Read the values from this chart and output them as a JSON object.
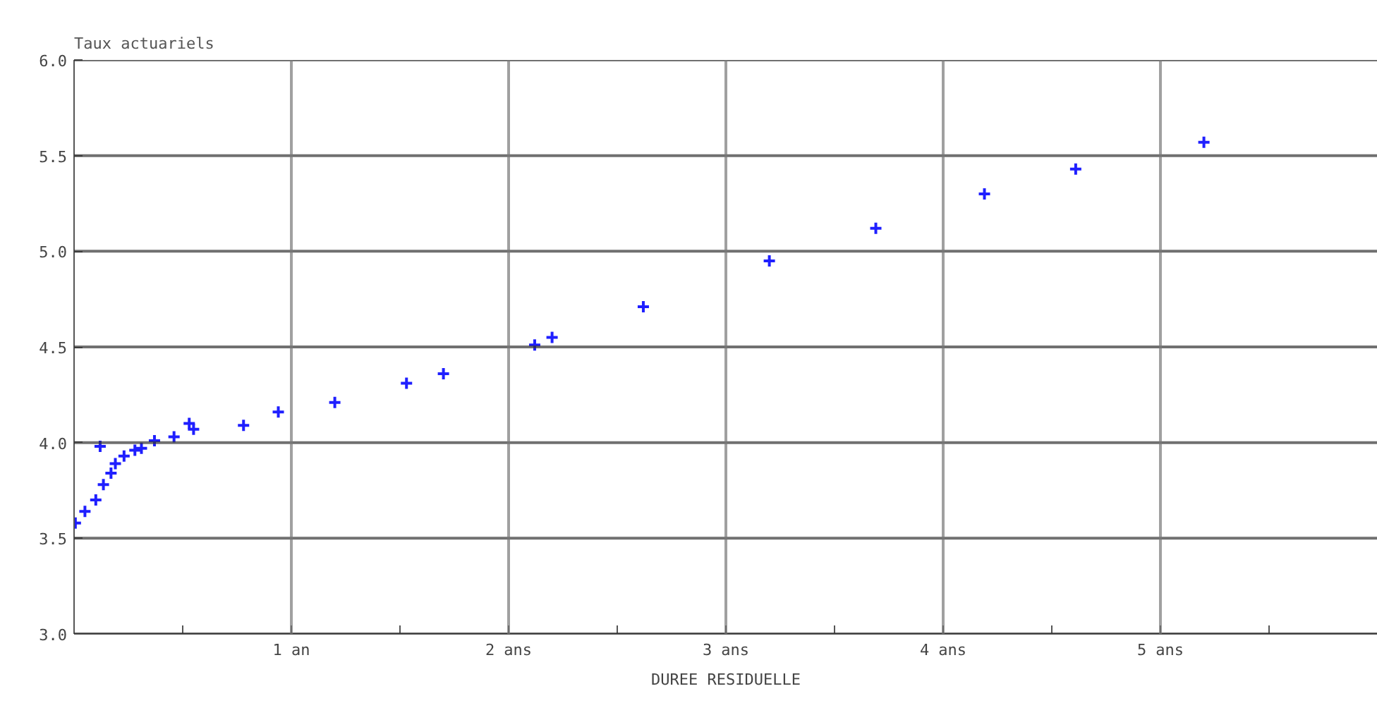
{
  "chart_data": {
    "type": "scatter",
    "ylabel": "Taux actuariels",
    "xlabel": "DUREE RESIDUELLE",
    "x": [
      0.006,
      0.05,
      0.1,
      0.135,
      0.17,
      0.19,
      0.23,
      0.28,
      0.31,
      0.12,
      0.37,
      0.46,
      0.53,
      0.55,
      0.78,
      0.94,
      1.2,
      1.53,
      1.7,
      2.12,
      2.2,
      2.62,
      3.2,
      3.69,
      4.19,
      4.61,
      5.2
    ],
    "series": [
      {
        "color": "#1f1fff",
        "values": [
          3.58,
          3.64,
          3.7,
          3.78,
          3.84,
          3.89,
          3.93,
          3.96,
          3.97,
          3.98,
          4.01,
          4.03,
          4.1,
          4.07,
          4.09,
          4.16,
          4.21,
          4.31,
          4.36,
          4.51,
          4.55,
          4.71,
          4.95,
          5.12,
          5.3,
          5.43,
          5.57
        ]
      }
    ],
    "xlim": [
      0,
      6
    ],
    "ylim": [
      3.0,
      6.0
    ],
    "xticks": [
      {
        "value": 0.5,
        "label": null
      },
      {
        "value": 1,
        "label": "1 an"
      },
      {
        "value": 1.5,
        "label": null
      },
      {
        "value": 2,
        "label": "2 ans"
      },
      {
        "value": 2.5,
        "label": null
      },
      {
        "value": 3,
        "label": "3 ans"
      },
      {
        "value": 3.5,
        "label": null
      },
      {
        "value": 4,
        "label": "4 ans"
      },
      {
        "value": 4.5,
        "label": null
      },
      {
        "value": 5,
        "label": "5 ans"
      },
      {
        "value": 5.5,
        "label": null
      }
    ],
    "yticks": [
      {
        "value": 3.0,
        "label": "3.0"
      },
      {
        "value": 3.5,
        "label": "3.5"
      },
      {
        "value": 4.0,
        "label": "4.0"
      },
      {
        "value": 4.5,
        "label": "4.5"
      },
      {
        "value": 5.0,
        "label": "5.0"
      },
      {
        "value": 5.5,
        "label": "5.5"
      },
      {
        "value": 6.0,
        "label": "6.0"
      }
    ],
    "grid": true,
    "marker": "cross"
  }
}
